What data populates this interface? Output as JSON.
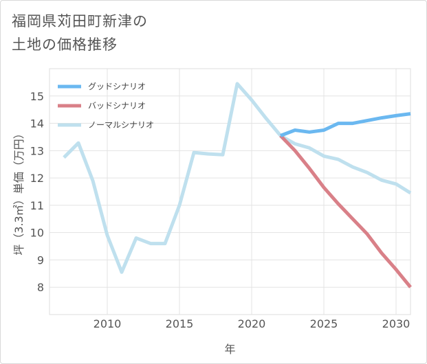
{
  "title_lines": [
    "福岡県苅田町新津の",
    "土地の価格推移"
  ],
  "chart_data": {
    "type": "line",
    "xlabel": "年",
    "ylabel": "坪（3.3㎡）単価（万円）",
    "xlim": [
      2006,
      2031
    ],
    "ylim": [
      7,
      16
    ],
    "xticks": [
      2010,
      2015,
      2020,
      2025,
      2030
    ],
    "yticks": [
      8,
      9,
      10,
      11,
      12,
      13,
      14,
      15
    ],
    "grid": true,
    "legend_position": "top-left",
    "series": [
      {
        "name": "グッドシナリオ",
        "color": "#6bb8f0",
        "x": [
          2022,
          2023,
          2024,
          2025,
          2026,
          2027,
          2028,
          2029,
          2030,
          2031
        ],
        "y": [
          13.55,
          13.75,
          13.68,
          13.75,
          14.0,
          14.0,
          14.1,
          14.2,
          14.28,
          14.35
        ]
      },
      {
        "name": "バッドシナリオ",
        "color": "#d98088",
        "x": [
          2022,
          2023,
          2024,
          2025,
          2026,
          2027,
          2028,
          2029,
          2030,
          2031
        ],
        "y": [
          13.55,
          13.0,
          12.35,
          11.65,
          11.05,
          10.5,
          9.95,
          9.25,
          8.65,
          8.0
        ]
      },
      {
        "name": "ノーマルシナリオ",
        "color": "#bfe0ee",
        "x": [
          2007,
          2008,
          2009,
          2010,
          2011,
          2012,
          2013,
          2014,
          2015,
          2016,
          2017,
          2018,
          2019,
          2020,
          2021,
          2022,
          2023,
          2024,
          2025,
          2026,
          2027,
          2028,
          2029,
          2030,
          2031
        ],
        "y": [
          12.75,
          13.28,
          11.9,
          9.9,
          8.55,
          9.8,
          9.6,
          9.6,
          11.0,
          12.93,
          12.88,
          12.85,
          15.45,
          14.85,
          14.18,
          13.55,
          13.25,
          13.1,
          12.8,
          12.68,
          12.4,
          12.2,
          11.92,
          11.78,
          11.45
        ]
      }
    ]
  }
}
